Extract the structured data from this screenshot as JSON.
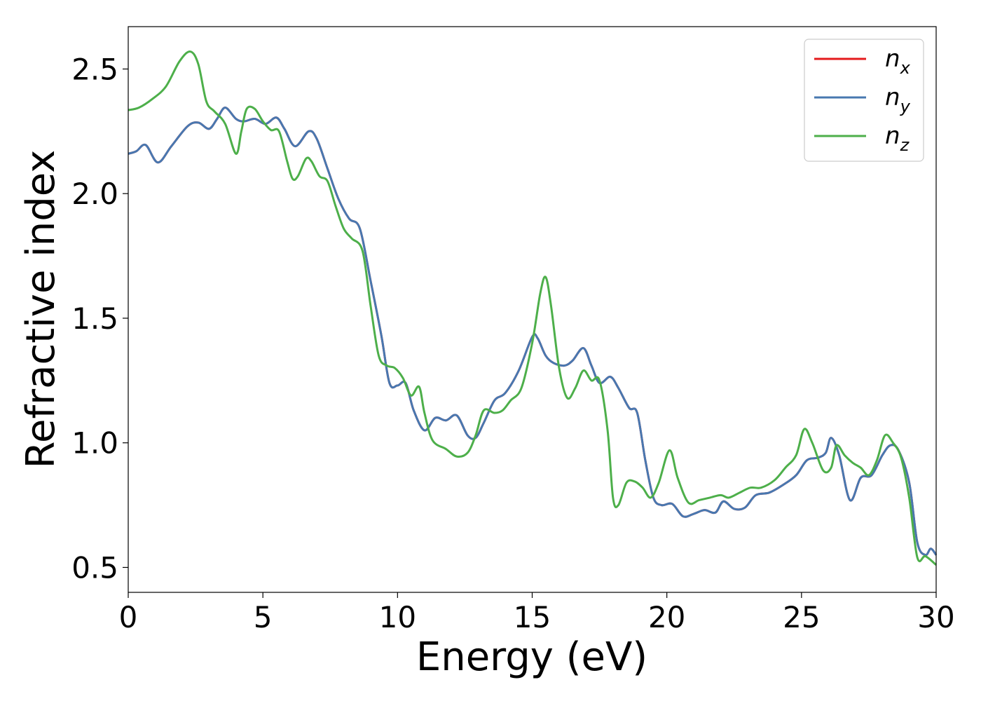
{
  "chart_data": {
    "type": "line",
    "xlabel": "Energy (eV)",
    "ylabel": "Refractive index",
    "xlim": [
      0,
      30
    ],
    "ylim": [
      0.4,
      2.67
    ],
    "xticks": [
      {
        "value": 0,
        "label": "0"
      },
      {
        "value": 5,
        "label": "5"
      },
      {
        "value": 10,
        "label": "10"
      },
      {
        "value": 15,
        "label": "15"
      },
      {
        "value": 20,
        "label": "20"
      },
      {
        "value": 25,
        "label": "25"
      },
      {
        "value": 30,
        "label": "30"
      }
    ],
    "yticks": [
      {
        "value": 0.5,
        "label": "0.5"
      },
      {
        "value": 1.0,
        "label": "1.0"
      },
      {
        "value": 1.5,
        "label": "1.5"
      },
      {
        "value": 2.0,
        "label": "2.0"
      },
      {
        "value": 2.5,
        "label": "2.5"
      }
    ],
    "grid": false,
    "legend_position": "top-right",
    "series": [
      {
        "name": "n",
        "subscript": "x",
        "color": "#e41a1c",
        "x": [
          0,
          0.3,
          0.65,
          1.1,
          1.6,
          2.2,
          2.6,
          3.0,
          3.3,
          3.6,
          4.0,
          4.3,
          4.7,
          5.1,
          5.5,
          5.8,
          6.2,
          6.7,
          7.0,
          7.4,
          7.8,
          8.2,
          8.6,
          9.0,
          9.4,
          9.7,
          10.0,
          10.3,
          10.6,
          11.0,
          11.4,
          11.8,
          12.2,
          12.6,
          12.9,
          13.2,
          13.6,
          14.0,
          14.5,
          15.0,
          15.2,
          15.5,
          15.8,
          16.2,
          16.5,
          16.9,
          17.2,
          17.5,
          17.9,
          18.2,
          18.6,
          18.9,
          19.2,
          19.5,
          19.8,
          20.2,
          20.6,
          21.0,
          21.4,
          21.8,
          22.1,
          22.5,
          22.9,
          23.3,
          23.8,
          24.3,
          24.8,
          25.2,
          25.6,
          25.9,
          26.1,
          26.4,
          26.8,
          27.2,
          27.6,
          28.0,
          28.3,
          28.6,
          29.0,
          29.3,
          29.6,
          29.8,
          30.0
        ],
        "values": [
          2.16,
          2.17,
          2.195,
          2.125,
          2.19,
          2.27,
          2.285,
          2.26,
          2.3,
          2.345,
          2.3,
          2.29,
          2.3,
          2.28,
          2.305,
          2.26,
          2.19,
          2.25,
          2.22,
          2.1,
          1.98,
          1.9,
          1.86,
          1.65,
          1.43,
          1.24,
          1.23,
          1.24,
          1.13,
          1.05,
          1.1,
          1.09,
          1.11,
          1.03,
          1.02,
          1.08,
          1.17,
          1.2,
          1.29,
          1.425,
          1.42,
          1.35,
          1.32,
          1.31,
          1.33,
          1.38,
          1.31,
          1.24,
          1.265,
          1.22,
          1.14,
          1.12,
          0.93,
          0.78,
          0.75,
          0.755,
          0.705,
          0.715,
          0.73,
          0.72,
          0.765,
          0.735,
          0.74,
          0.79,
          0.8,
          0.83,
          0.87,
          0.93,
          0.94,
          0.96,
          1.02,
          0.95,
          0.77,
          0.86,
          0.87,
          0.95,
          0.99,
          0.97,
          0.84,
          0.6,
          0.55,
          0.575,
          0.55
        ]
      },
      {
        "name": "n",
        "subscript": "y",
        "color": "#4878b0",
        "x": [
          0,
          0.3,
          0.65,
          1.1,
          1.6,
          2.2,
          2.6,
          3.0,
          3.3,
          3.6,
          4.0,
          4.3,
          4.7,
          5.1,
          5.5,
          5.8,
          6.2,
          6.7,
          7.0,
          7.4,
          7.8,
          8.2,
          8.6,
          9.0,
          9.4,
          9.7,
          10.0,
          10.3,
          10.6,
          11.0,
          11.4,
          11.8,
          12.2,
          12.6,
          12.9,
          13.2,
          13.6,
          14.0,
          14.5,
          15.0,
          15.2,
          15.5,
          15.8,
          16.2,
          16.5,
          16.9,
          17.2,
          17.5,
          17.9,
          18.2,
          18.6,
          18.9,
          19.2,
          19.5,
          19.8,
          20.2,
          20.6,
          21.0,
          21.4,
          21.8,
          22.1,
          22.5,
          22.9,
          23.3,
          23.8,
          24.3,
          24.8,
          25.2,
          25.6,
          25.9,
          26.1,
          26.4,
          26.8,
          27.2,
          27.6,
          28.0,
          28.3,
          28.6,
          29.0,
          29.3,
          29.6,
          29.8,
          30.0
        ],
        "values": [
          2.16,
          2.17,
          2.195,
          2.125,
          2.19,
          2.27,
          2.285,
          2.26,
          2.3,
          2.345,
          2.3,
          2.29,
          2.3,
          2.28,
          2.305,
          2.26,
          2.19,
          2.25,
          2.22,
          2.1,
          1.98,
          1.9,
          1.86,
          1.65,
          1.43,
          1.24,
          1.23,
          1.24,
          1.13,
          1.05,
          1.1,
          1.09,
          1.11,
          1.03,
          1.02,
          1.08,
          1.17,
          1.2,
          1.29,
          1.425,
          1.42,
          1.35,
          1.32,
          1.31,
          1.33,
          1.38,
          1.31,
          1.24,
          1.265,
          1.22,
          1.14,
          1.12,
          0.93,
          0.78,
          0.75,
          0.755,
          0.705,
          0.715,
          0.73,
          0.72,
          0.765,
          0.735,
          0.74,
          0.79,
          0.8,
          0.83,
          0.87,
          0.93,
          0.94,
          0.96,
          1.02,
          0.95,
          0.77,
          0.86,
          0.87,
          0.95,
          0.99,
          0.97,
          0.84,
          0.6,
          0.55,
          0.575,
          0.55
        ]
      },
      {
        "name": "n",
        "subscript": "z",
        "color": "#4daf4a",
        "x": [
          0,
          0.4,
          0.9,
          1.4,
          1.9,
          2.3,
          2.6,
          2.9,
          3.2,
          3.6,
          4.0,
          4.2,
          4.4,
          4.7,
          5.0,
          5.3,
          5.6,
          5.9,
          6.1,
          6.3,
          6.6,
          6.8,
          7.1,
          7.4,
          7.7,
          8.0,
          8.3,
          8.7,
          9.0,
          9.3,
          9.6,
          9.9,
          10.2,
          10.5,
          10.8,
          11.0,
          11.3,
          11.8,
          12.2,
          12.6,
          12.9,
          13.2,
          13.6,
          13.9,
          14.2,
          14.6,
          15.0,
          15.3,
          15.5,
          15.7,
          16.0,
          16.3,
          16.6,
          16.9,
          17.2,
          17.5,
          17.8,
          18.0,
          18.2,
          18.5,
          18.8,
          19.1,
          19.4,
          19.7,
          20.1,
          20.4,
          20.8,
          21.2,
          21.6,
          22.0,
          22.3,
          22.7,
          23.1,
          23.5,
          24.0,
          24.4,
          24.8,
          25.1,
          25.4,
          25.8,
          26.1,
          26.3,
          26.6,
          26.9,
          27.2,
          27.5,
          27.8,
          28.1,
          28.4,
          28.7,
          29.0,
          29.3,
          29.6,
          30.0
        ],
        "values": [
          2.335,
          2.345,
          2.38,
          2.43,
          2.53,
          2.57,
          2.52,
          2.37,
          2.33,
          2.28,
          2.16,
          2.25,
          2.34,
          2.34,
          2.29,
          2.255,
          2.25,
          2.13,
          2.06,
          2.07,
          2.14,
          2.13,
          2.07,
          2.05,
          1.95,
          1.86,
          1.82,
          1.77,
          1.55,
          1.35,
          1.31,
          1.3,
          1.26,
          1.19,
          1.225,
          1.12,
          1.01,
          0.975,
          0.945,
          0.96,
          1.03,
          1.13,
          1.12,
          1.13,
          1.17,
          1.22,
          1.4,
          1.6,
          1.665,
          1.55,
          1.3,
          1.18,
          1.22,
          1.29,
          1.25,
          1.25,
          1.05,
          0.78,
          0.75,
          0.84,
          0.845,
          0.82,
          0.78,
          0.84,
          0.97,
          0.86,
          0.76,
          0.77,
          0.78,
          0.79,
          0.78,
          0.8,
          0.82,
          0.82,
          0.85,
          0.9,
          0.95,
          1.055,
          1.0,
          0.89,
          0.9,
          0.99,
          0.95,
          0.92,
          0.9,
          0.87,
          0.93,
          1.03,
          1.0,
          0.94,
          0.78,
          0.54,
          0.545,
          0.51
        ]
      }
    ]
  }
}
